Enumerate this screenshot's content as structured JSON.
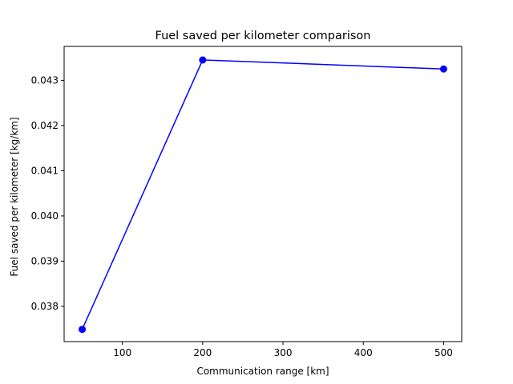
{
  "chart_data": {
    "type": "line",
    "title": "Fuel saved per kilometer comparison",
    "xlabel": "Communication range [km]",
    "ylabel": "Fuel saved per kilometer [kg/km]",
    "xlim": [
      27.5,
      522.5
    ],
    "ylim": [
      0.03722,
      0.04375
    ],
    "xticks": [
      100,
      200,
      300,
      400,
      500
    ],
    "yticks": [
      0.038,
      0.039,
      0.04,
      0.041,
      0.042,
      0.043
    ],
    "xtick_labels": [
      "100",
      "200",
      "300",
      "400",
      "500"
    ],
    "ytick_labels": [
      "0.038",
      "0.039",
      "0.040",
      "0.041",
      "0.042",
      "0.043"
    ],
    "grid": false,
    "series": [
      {
        "color": "#0000ff",
        "marker": "circle",
        "x": [
          50,
          200,
          500
        ],
        "y": [
          0.03749,
          0.04345,
          0.04325
        ]
      }
    ]
  }
}
